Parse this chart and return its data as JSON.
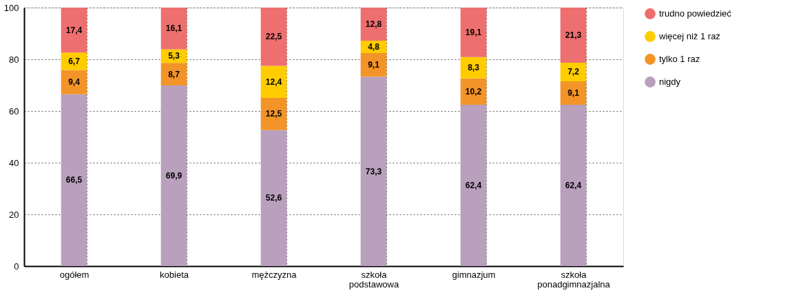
{
  "chart_data": {
    "type": "bar",
    "stacked": true,
    "categories": [
      "ogółem",
      "kobieta",
      "mężczyzna",
      "szkoła podstawowa",
      "gimnazjum",
      "szkoła ponadgimnazjalna"
    ],
    "series": [
      {
        "name": "nigdy",
        "color": "#b9a0bd",
        "values": [
          66.5,
          69.9,
          52.6,
          73.3,
          62.4,
          62.4
        ],
        "value_labels": [
          "66,5",
          "69,9",
          "52,6",
          "73,3",
          "62,4",
          "62,4"
        ]
      },
      {
        "name": "tylko 1 raz",
        "color": "#f39429",
        "values": [
          9.4,
          8.7,
          12.5,
          9.1,
          10.2,
          9.1
        ],
        "value_labels": [
          "9,4",
          "8,7",
          "12,5",
          "9,1",
          "10,2",
          "9,1"
        ]
      },
      {
        "name": "więcej niż 1 raz",
        "color": "#ffcc00",
        "values": [
          6.7,
          5.3,
          12.4,
          4.8,
          8.3,
          7.2
        ],
        "value_labels": [
          "6,7",
          "5,3",
          "12,4",
          "4,8",
          "8,3",
          "7,2"
        ]
      },
      {
        "name": "trudno powiedzieć",
        "color": "#ee6f6f",
        "values": [
          17.4,
          16.1,
          22.5,
          12.8,
          19.1,
          21.3
        ],
        "value_labels": [
          "17,4",
          "16,1",
          "22,5",
          "12,8",
          "19,1",
          "21,3"
        ]
      }
    ],
    "ylim": [
      0,
      100
    ],
    "yticks": [
      0,
      20,
      40,
      60,
      80,
      100
    ],
    "grid": true,
    "legend": "right"
  }
}
